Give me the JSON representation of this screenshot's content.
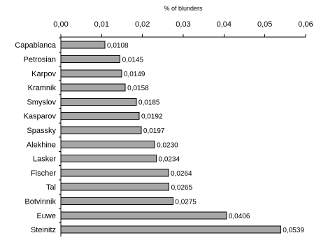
{
  "chart_data": {
    "type": "bar",
    "orientation": "horizontal",
    "title": "",
    "xlabel": "% of blunders",
    "ylabel": "",
    "xaxis_position": "top",
    "grid": false,
    "legend": "none",
    "xlim": [
      0,
      0.06
    ],
    "xticks": [
      0,
      0.01,
      0.02,
      0.03,
      0.04,
      0.05,
      0.06
    ],
    "xtick_labels": [
      "0,00",
      "0,01",
      "0,02",
      "0,03",
      "0,04",
      "0,05",
      "0,06"
    ],
    "categories": [
      "Capablanca",
      "Petrosian",
      "Karpov",
      "Kramnik",
      "Smyslov",
      "Kasparov",
      "Spassky",
      "Alekhine",
      "Lasker",
      "Fischer",
      "Tal",
      "Botvinnik",
      "Euwe",
      "Steinitz"
    ],
    "values": [
      0.0108,
      0.0145,
      0.0149,
      0.0158,
      0.0185,
      0.0192,
      0.0197,
      0.023,
      0.0234,
      0.0264,
      0.0265,
      0.0275,
      0.0406,
      0.0539
    ],
    "value_labels": [
      "0,0108",
      "0,0145",
      "0,0149",
      "0,0158",
      "0,0185",
      "0,0192",
      "0,0197",
      "0,0230",
      "0,0234",
      "0,0264",
      "0,0265",
      "0,0275",
      "0,0406",
      "0,0539"
    ],
    "bar_color": "#a6a6a6",
    "bar_edge_color": "#000000"
  }
}
